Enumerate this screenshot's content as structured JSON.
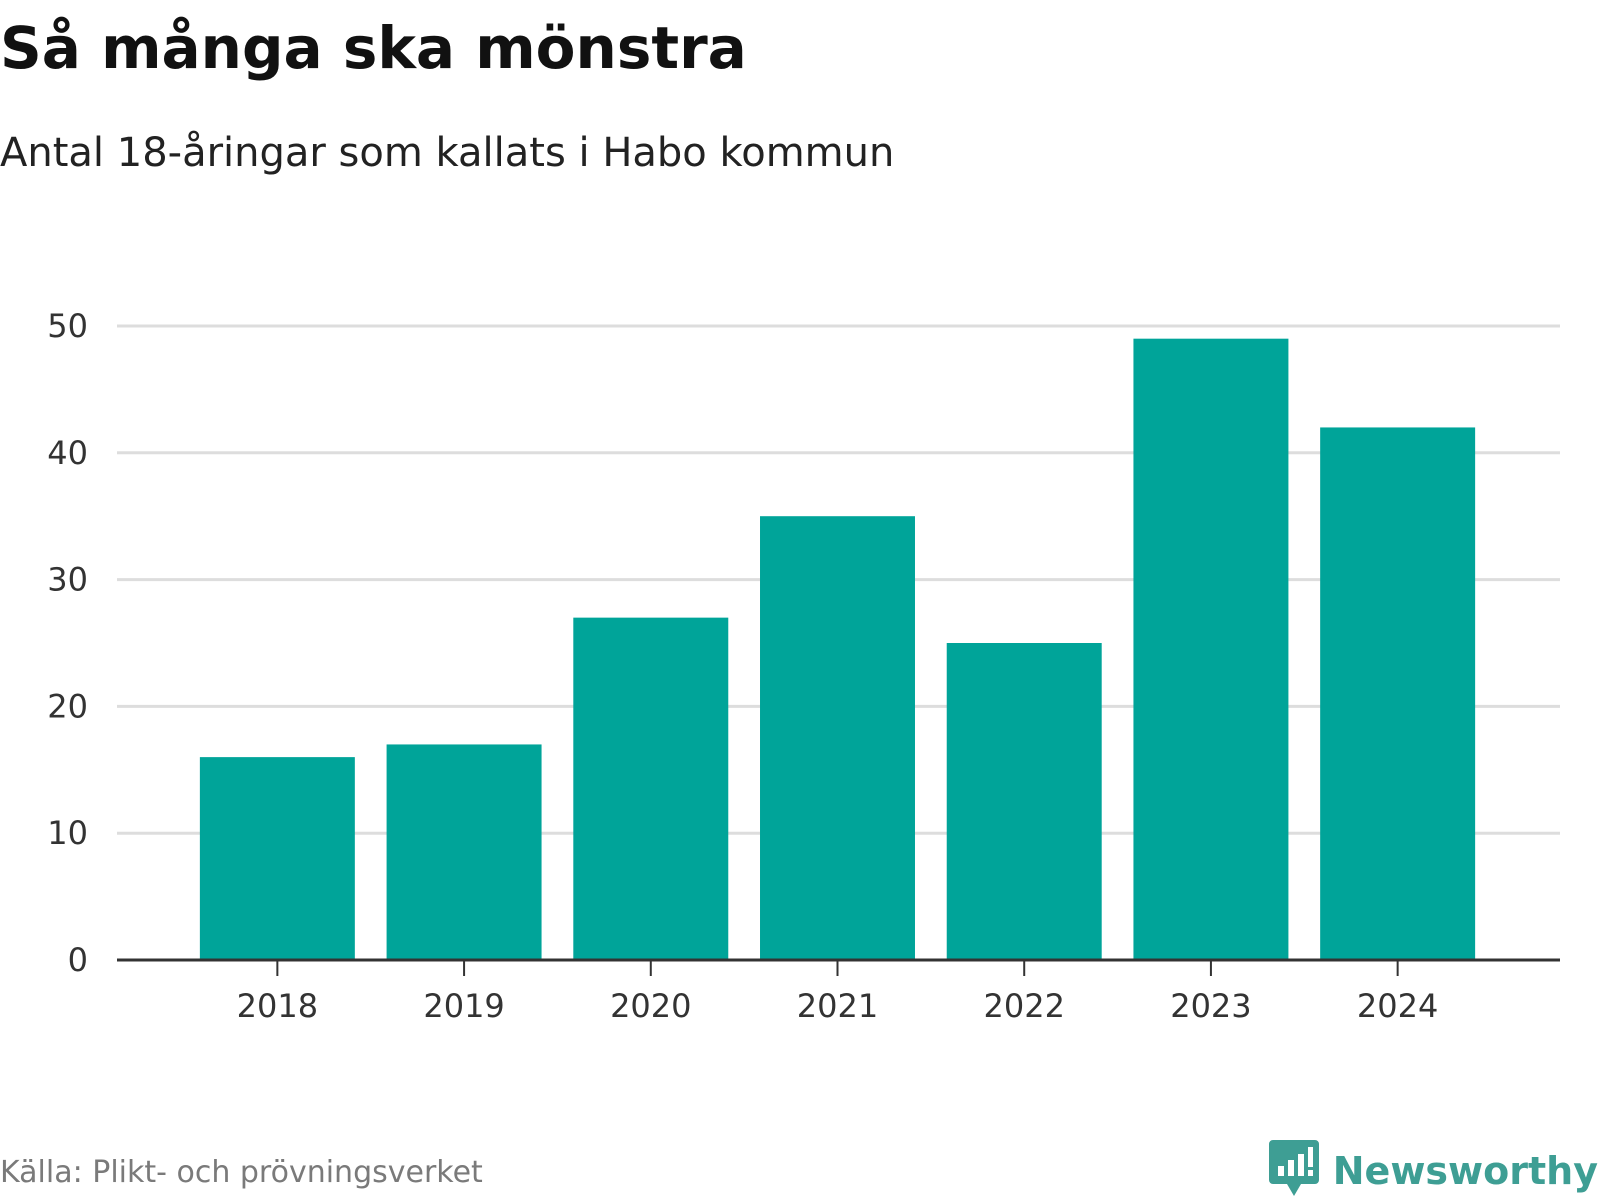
{
  "header": {
    "title": "Så många ska mönstra",
    "subtitle": "Antal 18-åringar som kallats i Habo kommun"
  },
  "footer": {
    "source": "Källa: Plikt- och prövningsverket",
    "brand": "Newsworthy",
    "brand_icon": "bar-chart-speech-bubble-icon"
  },
  "colors": {
    "bar": "#00a499",
    "grid": "#dddddd",
    "axis": "#333333",
    "brand": "#3e9e94"
  },
  "chart_data": {
    "type": "bar",
    "title": "Så många ska mönstra",
    "subtitle": "Antal 18-åringar som kallats i Habo kommun",
    "categories": [
      "2018",
      "2019",
      "2020",
      "2021",
      "2022",
      "2023",
      "2024"
    ],
    "values": [
      16,
      17,
      27,
      35,
      25,
      49,
      42
    ],
    "xlabel": "",
    "ylabel": "",
    "ylim": [
      0,
      50
    ],
    "yticks": [
      0,
      10,
      20,
      30,
      40,
      50
    ],
    "grid": true,
    "legend": "none"
  }
}
